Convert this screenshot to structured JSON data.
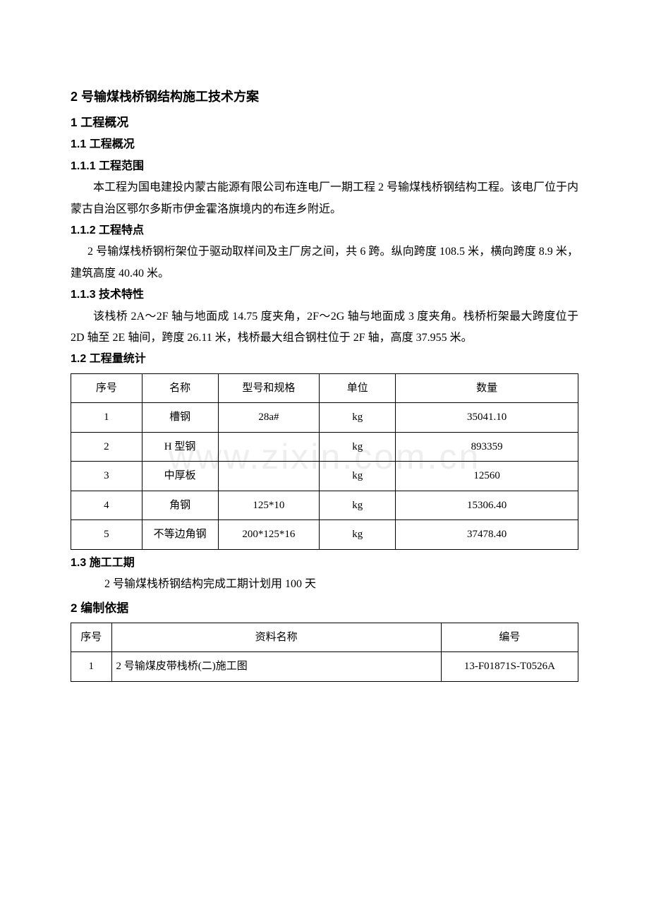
{
  "watermark": "www.zixin.com.cn",
  "title": "2 号输煤栈桥钢结构施工技术方案",
  "sections": {
    "s1": {
      "num": "1",
      "title": "工程概况"
    },
    "s1_1": {
      "num": "1.1",
      "title": "工程概况"
    },
    "s1_1_1": {
      "num": "1.1.1",
      "title": "工程范围",
      "p": "本工程为国电建投内蒙古能源有限公司布连电厂一期工程 2 号输煤栈桥钢结构工程。该电厂位于内蒙古自治区鄂尔多斯市伊金霍洛旗境内的布连乡附近。"
    },
    "s1_1_2": {
      "num": "1.1.2",
      "title": "工程特点",
      "p": "2 号输煤栈桥钢桁架位于驱动取样间及主厂房之间，共 6 跨。纵向跨度 108.5 米，横向跨度 8.9 米，建筑高度 40.40 米。"
    },
    "s1_1_3": {
      "num": "1.1.3",
      "title": "技术特性",
      "p": "该栈桥 2A～2F 轴与地面成 14.75 度夹角，2F～2G 轴与地面成 3 度夹角。栈桥桁架最大跨度位于 2D 轴至 2E 轴间，跨度 26.11 米，栈桥最大组合钢柱位于 2F 轴，高度 37.955 米。"
    },
    "s1_2": {
      "num": "1.2",
      "title": "工程量统计"
    },
    "s1_3": {
      "num": "1.3",
      "title": "施工工期",
      "p": "2 号输煤栈桥钢结构完成工期计划用 100 天"
    },
    "s2": {
      "num": "2",
      "title": "编制依据"
    }
  },
  "table1": {
    "headers": [
      "序号",
      "名称",
      "型号和规格",
      "单位",
      "数量"
    ],
    "rows": [
      [
        "1",
        "槽钢",
        "28a#",
        "kg",
        "35041.10"
      ],
      [
        "2",
        "H 型钢",
        "",
        "kg",
        "893359"
      ],
      [
        "3",
        "中厚板",
        "",
        "kg",
        "12560"
      ],
      [
        "4",
        "角钢",
        "125*10",
        "kg",
        "15306.40"
      ],
      [
        "5",
        "不等边角钢",
        "200*125*16",
        "kg",
        "37478.40"
      ]
    ],
    "col_widths": [
      "14%",
      "15%",
      "20%",
      "15%",
      "36%"
    ]
  },
  "table2": {
    "headers": [
      "序号",
      "资料名称",
      "编号"
    ],
    "rows": [
      [
        "1",
        "2 号输煤皮带栈桥(二)施工图",
        "13-F01871S-T0526A"
      ]
    ]
  }
}
